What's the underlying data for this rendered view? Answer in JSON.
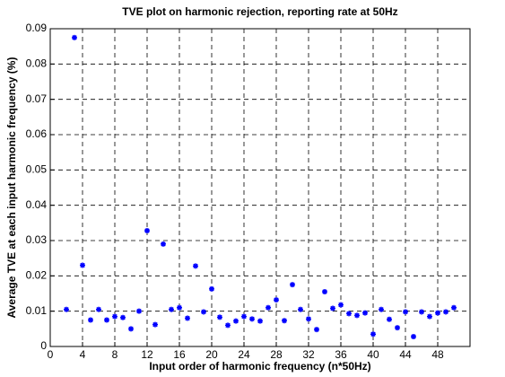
{
  "chart_data": {
    "type": "scatter",
    "title": "TVE plot on harmonic rejection, reporting rate at 50Hz",
    "x_label": "Input order of harmonic frequency (n*50Hz)",
    "y_label": "Average TVE at each input harmonic frequency (%)",
    "color": "#0000ff",
    "grid": true,
    "xlim": [
      0,
      52
    ],
    "xticks": [
      0,
      4,
      8,
      12,
      16,
      20,
      24,
      28,
      32,
      36,
      40,
      44,
      48
    ],
    "ylim": [
      0,
      0.09
    ],
    "yticks": [
      0,
      0.01,
      0.02,
      0.03,
      0.04,
      0.05,
      0.06,
      0.07,
      0.08,
      0.09
    ],
    "x": [
      2,
      3,
      4,
      5,
      6,
      7,
      8,
      9,
      10,
      11,
      12,
      13,
      14,
      15,
      16,
      17,
      18,
      19,
      20,
      21,
      22,
      23,
      24,
      25,
      26,
      27,
      28,
      29,
      30,
      31,
      32,
      33,
      34,
      35,
      36,
      37,
      38,
      39,
      40,
      41,
      42,
      43,
      44,
      45,
      46,
      47,
      48,
      49,
      50
    ],
    "values": [
      0.0105,
      0.0875,
      0.023,
      0.0075,
      0.0105,
      0.0075,
      0.0085,
      0.0082,
      0.005,
      0.01,
      0.0328,
      0.0062,
      0.029,
      0.0105,
      0.011,
      0.008,
      0.0228,
      0.0098,
      0.0163,
      0.0083,
      0.006,
      0.0072,
      0.0085,
      0.0078,
      0.0072,
      0.011,
      0.0132,
      0.0073,
      0.0175,
      0.0105,
      0.0078,
      0.0048,
      0.0155,
      0.0108,
      0.0118,
      0.0093,
      0.0088,
      0.0095,
      0.0035,
      0.0105,
      0.0077,
      0.0053,
      0.0098,
      0.0028,
      0.0098,
      0.0085,
      0.0095,
      0.0098,
      0.011
    ]
  }
}
